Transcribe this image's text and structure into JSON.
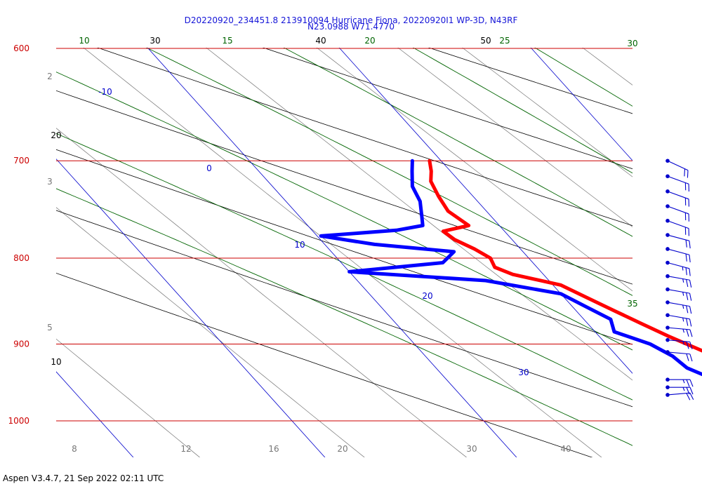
{
  "chart_data": {
    "type": "line",
    "title": "D20220920_234451.8 213910094 Hurricane Fiona, 20220920I1 WP-3D, N43RF",
    "subtitle": "N23.0988 W71.4770",
    "footer": "Aspen V3.4.7, 21 Sep 2022  02:11 UTC",
    "y_axis": {
      "scale": "log",
      "range": [
        1040,
        600
      ],
      "ticks": [
        "600",
        "700",
        "800",
        "900",
        "1000"
      ]
    },
    "isobars": [
      600,
      700,
      800,
      900,
      1000
    ],
    "temperature_labels": [
      "-10",
      "0",
      "10",
      "20",
      "30"
    ],
    "theta_labels": [
      "10",
      "20",
      "30",
      "40",
      "50"
    ],
    "theta_e_labels": [
      "10",
      "15",
      "20",
      "25",
      "30",
      "35"
    ],
    "mixing_ratio_labels": [
      "2",
      "3",
      "5",
      "8",
      "12",
      "16",
      "20",
      "30",
      "40"
    ],
    "series": [
      {
        "role": "temperature",
        "color": "#ff0000",
        "points": [
          [
            700,
            9.4
          ],
          [
            710,
            9.0
          ],
          [
            720,
            8.5
          ],
          [
            735,
            8.2
          ],
          [
            750,
            8.0
          ],
          [
            765,
            8.4
          ],
          [
            771,
            6.8
          ],
          [
            780,
            7.0
          ],
          [
            790,
            7.6
          ],
          [
            800,
            8.0
          ],
          [
            810,
            7.8
          ],
          [
            818,
            8.4
          ],
          [
            830,
            10.4
          ],
          [
            845,
            11.2
          ],
          [
            860,
            12.0
          ],
          [
            875,
            12.8
          ],
          [
            890,
            13.6
          ],
          [
            900,
            14.2
          ],
          [
            910,
            14.8
          ],
          [
            920,
            15.4
          ],
          [
            930,
            16.4
          ],
          [
            940,
            16.2
          ],
          [
            950,
            16.8
          ],
          [
            960,
            17.6
          ],
          [
            965,
            18.3
          ]
        ]
      },
      {
        "role": "dewpoint",
        "color": "#0000ff",
        "points": [
          [
            700,
            8.5
          ],
          [
            710,
            8.0
          ],
          [
            725,
            7.3
          ],
          [
            740,
            7.0
          ],
          [
            755,
            6.4
          ],
          [
            765,
            6.0
          ],
          [
            770,
            4.4
          ],
          [
            776,
            0.2
          ],
          [
            785,
            2.6
          ],
          [
            793,
            6.4
          ],
          [
            805,
            5.3
          ],
          [
            815,
            0.0
          ],
          [
            825,
            6.7
          ],
          [
            840,
            10.0
          ],
          [
            855,
            10.7
          ],
          [
            870,
            11.4
          ],
          [
            885,
            11.0
          ],
          [
            900,
            12.3
          ],
          [
            915,
            12.9
          ],
          [
            930,
            13.1
          ],
          [
            945,
            14.0
          ],
          [
            955,
            14.8
          ],
          [
            963,
            16.8
          ]
        ]
      }
    ],
    "wind_barbs": [
      {
        "pressure": 700,
        "speed_kt": 20,
        "direction_deg": 115
      },
      {
        "pressure": 715,
        "speed_kt": 20,
        "direction_deg": 110
      },
      {
        "pressure": 730,
        "speed_kt": 20,
        "direction_deg": 110
      },
      {
        "pressure": 745,
        "speed_kt": 20,
        "direction_deg": 110
      },
      {
        "pressure": 760,
        "speed_kt": 20,
        "direction_deg": 110
      },
      {
        "pressure": 775,
        "speed_kt": 20,
        "direction_deg": 105
      },
      {
        "pressure": 790,
        "speed_kt": 20,
        "direction_deg": 105
      },
      {
        "pressure": 805,
        "speed_kt": 25,
        "direction_deg": 105
      },
      {
        "pressure": 820,
        "speed_kt": 25,
        "direction_deg": 100
      },
      {
        "pressure": 835,
        "speed_kt": 25,
        "direction_deg": 100
      },
      {
        "pressure": 850,
        "speed_kt": 25,
        "direction_deg": 100
      },
      {
        "pressure": 865,
        "speed_kt": 25,
        "direction_deg": 100
      },
      {
        "pressure": 880,
        "speed_kt": 25,
        "direction_deg": 95
      },
      {
        "pressure": 895,
        "speed_kt": 25,
        "direction_deg": 95
      },
      {
        "pressure": 910,
        "speed_kt": 20,
        "direction_deg": 95
      },
      {
        "pressure": 945,
        "speed_kt": 25,
        "direction_deg": 90
      },
      {
        "pressure": 955,
        "speed_kt": 25,
        "direction_deg": 90
      },
      {
        "pressure": 965,
        "speed_kt": 20,
        "direction_deg": 85
      }
    ],
    "colors": {
      "isobar": "#cc0000",
      "isotherm": "#0000cc",
      "theta": "#000000",
      "theta_e": "#006400",
      "mixing_ratio": "#777777"
    }
  }
}
